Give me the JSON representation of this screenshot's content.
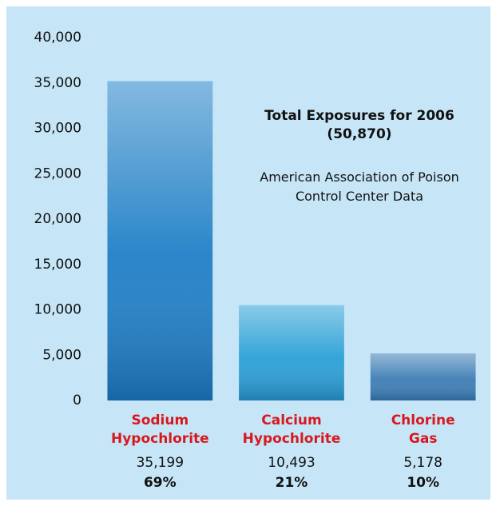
{
  "chart_data": {
    "type": "bar",
    "title": "Total Exposures for 2006 (50,870)",
    "subtitle": "American Association of Poison Control Center Data",
    "categories": [
      "Sodium Hypochlorite",
      "Calcium Hypochlorite",
      "Chlorine Gas"
    ],
    "values": [
      35199,
      10493,
      5178
    ],
    "value_labels": [
      "35,199",
      "10,493",
      "5,178"
    ],
    "shares": [
      "69%",
      "21%",
      "10%"
    ],
    "colors": [
      "#1f7fc6",
      "#2aa0d6",
      "#3d7db5"
    ],
    "category_color": "#d7191f",
    "ylim": [
      0,
      40000
    ],
    "yticks": [
      0,
      {
        "value": 5000,
        "label": "5,000"
      },
      {
        "value": 10000,
        "label": "10,000"
      },
      {
        "value": 15000,
        "label": "15,000"
      },
      {
        "value": 20000,
        "label": "20,000"
      },
      {
        "value": 25000,
        "label": "25,000"
      },
      {
        "value": 30000,
        "label": "30,000"
      },
      {
        "value": 35000,
        "label": "35,000"
      },
      {
        "value": 40000,
        "label": "40,000"
      }
    ],
    "grid": false
  }
}
